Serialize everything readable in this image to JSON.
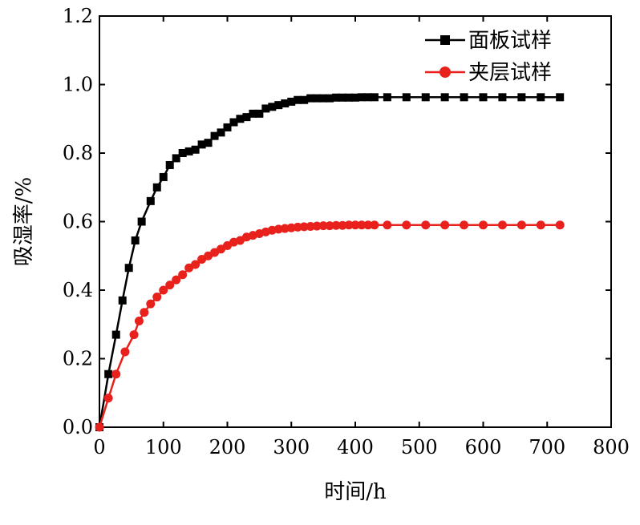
{
  "chart_data": {
    "type": "line",
    "xlabel": "时间/h",
    "ylabel": "吸湿率/%",
    "xlim": [
      0,
      800
    ],
    "ylim": [
      0,
      1.2
    ],
    "xticks": [
      0,
      100,
      200,
      300,
      400,
      500,
      600,
      700,
      800
    ],
    "yticks": [
      0.0,
      0.2,
      0.4,
      0.6,
      0.8,
      1.0,
      1.2
    ],
    "xtick_labels": [
      "0",
      "100",
      "200",
      "300",
      "400",
      "500",
      "600",
      "700",
      "800"
    ],
    "ytick_labels": [
      "0.0",
      "0.2",
      "0.4",
      "0.6",
      "0.8",
      "1.0",
      "1.2"
    ],
    "grid": false,
    "legend_position": "top-right",
    "series": [
      {
        "name": "面板试样",
        "color": "#000000",
        "marker": "square",
        "x": [
          0,
          14,
          26,
          36,
          46,
          56,
          66,
          80,
          90,
          100,
          110,
          120,
          130,
          140,
          150,
          160,
          170,
          180,
          190,
          200,
          210,
          220,
          230,
          240,
          250,
          260,
          270,
          280,
          290,
          300,
          310,
          320,
          330,
          340,
          350,
          360,
          370,
          380,
          390,
          400,
          410,
          420,
          430,
          450,
          480,
          510,
          540,
          570,
          600,
          630,
          660,
          690,
          720
        ],
        "y": [
          0.0,
          0.155,
          0.27,
          0.37,
          0.465,
          0.545,
          0.6,
          0.66,
          0.7,
          0.73,
          0.765,
          0.785,
          0.8,
          0.805,
          0.81,
          0.825,
          0.83,
          0.85,
          0.86,
          0.875,
          0.89,
          0.9,
          0.905,
          0.915,
          0.915,
          0.93,
          0.935,
          0.94,
          0.945,
          0.95,
          0.955,
          0.955,
          0.96,
          0.96,
          0.96,
          0.96,
          0.962,
          0.962,
          0.962,
          0.962,
          0.963,
          0.963,
          0.963,
          0.963,
          0.963,
          0.963,
          0.963,
          0.963,
          0.963,
          0.963,
          0.963,
          0.963,
          0.963
        ]
      },
      {
        "name": "夹层试样",
        "color": "#e8211c",
        "marker": "circle",
        "x": [
          0,
          14,
          26,
          40,
          54,
          62,
          70,
          80,
          90,
          100,
          110,
          120,
          130,
          140,
          150,
          160,
          170,
          180,
          190,
          200,
          210,
          220,
          230,
          240,
          250,
          260,
          270,
          280,
          290,
          300,
          310,
          320,
          330,
          340,
          350,
          360,
          370,
          380,
          390,
          400,
          410,
          420,
          430,
          450,
          480,
          510,
          540,
          570,
          600,
          630,
          660,
          690,
          720
        ],
        "y": [
          0.0,
          0.085,
          0.155,
          0.22,
          0.27,
          0.31,
          0.335,
          0.36,
          0.38,
          0.4,
          0.415,
          0.43,
          0.445,
          0.465,
          0.475,
          0.49,
          0.5,
          0.51,
          0.52,
          0.53,
          0.54,
          0.545,
          0.555,
          0.56,
          0.565,
          0.57,
          0.575,
          0.578,
          0.58,
          0.582,
          0.584,
          0.585,
          0.586,
          0.587,
          0.588,
          0.588,
          0.589,
          0.589,
          0.59,
          0.59,
          0.59,
          0.59,
          0.59,
          0.59,
          0.59,
          0.59,
          0.59,
          0.59,
          0.59,
          0.59,
          0.59,
          0.59,
          0.59
        ]
      }
    ]
  }
}
